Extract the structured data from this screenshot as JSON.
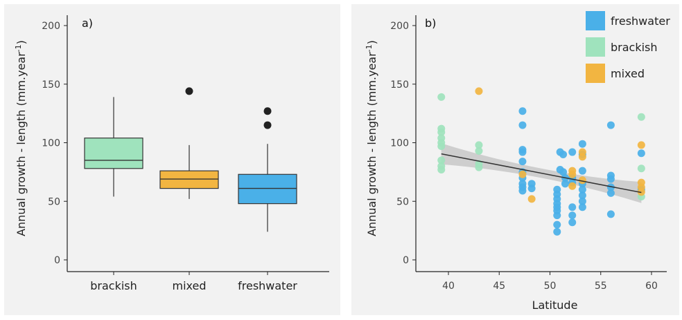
{
  "chart_data": [
    {
      "type": "box",
      "panel_label": "a)",
      "ylabel": "Annual growth - length (mm.year",
      "ylabel_sup": "-1",
      "ylabel_close": ")",
      "xlabel": "",
      "ylim": [
        0,
        210
      ],
      "yticks": [
        0,
        50,
        100,
        150,
        200
      ],
      "categories": [
        "brackish",
        "mixed",
        "freshwater"
      ],
      "colors": [
        "#9fe3bd",
        "#f2b541",
        "#4ab0e8"
      ],
      "boxes": [
        {
          "name": "brackish",
          "whisker_low": 54,
          "q1": 78,
          "median": 85,
          "q3": 104,
          "whisker_high": 139,
          "outliers": []
        },
        {
          "name": "mixed",
          "whisker_low": 52,
          "q1": 61,
          "median": 69,
          "q3": 76,
          "whisker_high": 98,
          "outliers": [
            144
          ]
        },
        {
          "name": "freshwater",
          "whisker_low": 24,
          "q1": 48,
          "median": 61,
          "q3": 73,
          "whisker_high": 99,
          "outliers": [
            115,
            127
          ]
        }
      ]
    },
    {
      "type": "scatter",
      "panel_label": "b)",
      "ylabel": "Annual growth - length (mm.year",
      "ylabel_sup": "-1",
      "ylabel_close": ")",
      "xlabel": "Latitude",
      "xlim": [
        37,
        61
      ],
      "ylim": [
        0,
        210
      ],
      "xticks": [
        40,
        45,
        50,
        55,
        60
      ],
      "yticks": [
        0,
        50,
        100,
        150,
        200
      ],
      "legend": [
        "freshwater",
        "brackish",
        "mixed"
      ],
      "legend_position": "top-right",
      "series": [
        {
          "name": "freshwater",
          "color": "#4ab0e8",
          "points": [
            [
              47.3,
              127
            ],
            [
              47.3,
              115
            ],
            [
              47.3,
              94
            ],
            [
              47.3,
              92
            ],
            [
              47.3,
              84
            ],
            [
              47.3,
              75
            ],
            [
              47.3,
              70
            ],
            [
              47.3,
              65
            ],
            [
              47.3,
              62
            ],
            [
              47.3,
              59
            ],
            [
              48.2,
              65
            ],
            [
              48.2,
              61
            ],
            [
              50.7,
              60
            ],
            [
              50.7,
              56
            ],
            [
              50.7,
              52
            ],
            [
              50.7,
              48
            ],
            [
              50.7,
              45
            ],
            [
              50.7,
              42
            ],
            [
              50.7,
              38
            ],
            [
              50.7,
              30
            ],
            [
              50.7,
              24
            ],
            [
              51.0,
              92
            ],
            [
              51.0,
              77
            ],
            [
              51.3,
              90
            ],
            [
              51.3,
              75
            ],
            [
              51.5,
              70
            ],
            [
              51.5,
              65
            ],
            [
              52.2,
              92
            ],
            [
              52.2,
              70
            ],
            [
              52.2,
              66
            ],
            [
              52.2,
              45
            ],
            [
              52.2,
              38
            ],
            [
              52.2,
              32
            ],
            [
              53.2,
              99
            ],
            [
              53.2,
              90
            ],
            [
              53.2,
              76
            ],
            [
              53.2,
              65
            ],
            [
              53.2,
              60
            ],
            [
              53.2,
              55
            ],
            [
              53.2,
              50
            ],
            [
              53.2,
              45
            ],
            [
              56.0,
              115
            ],
            [
              56.0,
              72
            ],
            [
              56.0,
              69
            ],
            [
              56.0,
              62
            ],
            [
              56.0,
              57
            ],
            [
              56.0,
              39
            ],
            [
              59.0,
              91
            ],
            [
              59.0,
              60
            ]
          ]
        },
        {
          "name": "brackish",
          "color": "#9fe3bd",
          "points": [
            [
              39.3,
              139
            ],
            [
              39.3,
              112
            ],
            [
              39.3,
              109
            ],
            [
              39.3,
              104
            ],
            [
              39.3,
              100
            ],
            [
              39.3,
              97
            ],
            [
              39.3,
              85
            ],
            [
              39.3,
              80
            ],
            [
              39.3,
              77
            ],
            [
              43.0,
              98
            ],
            [
              43.0,
              93
            ],
            [
              43.0,
              82
            ],
            [
              43.0,
              79
            ],
            [
              59.0,
              122
            ],
            [
              59.0,
              78
            ],
            [
              59.0,
              54
            ]
          ]
        },
        {
          "name": "mixed",
          "color": "#f2b541",
          "points": [
            [
              43.0,
              144
            ],
            [
              47.3,
              73
            ],
            [
              48.2,
              52
            ],
            [
              52.2,
              76
            ],
            [
              52.2,
              73
            ],
            [
              52.2,
              63
            ],
            [
              53.2,
              92
            ],
            [
              53.2,
              88
            ],
            [
              53.2,
              68
            ],
            [
              59.0,
              98
            ],
            [
              59.0,
              66
            ],
            [
              59.0,
              62
            ],
            [
              59.0,
              58
            ]
          ]
        }
      ],
      "trend": {
        "x": [
          39.3,
          59.0
        ],
        "y": [
          90.5,
          57.5
        ],
        "ci_halfwidth_ends": [
          9,
          9
        ],
        "ci_halfwidth_mid": 4,
        "line_color": "#333333",
        "band_color": "#c8c8c8"
      }
    }
  ]
}
